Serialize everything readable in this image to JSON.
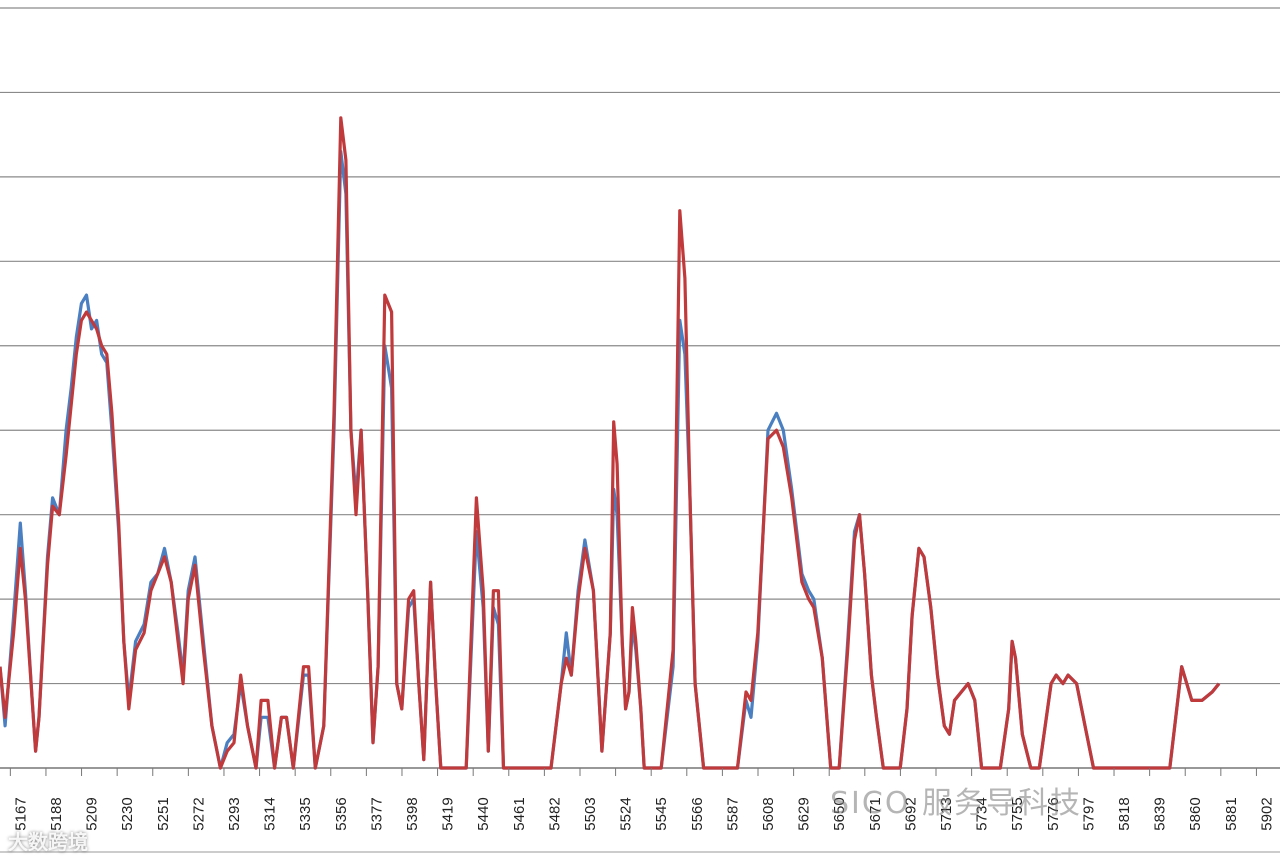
{
  "chart_data": {
    "type": "line",
    "title": "",
    "xlabel": "",
    "ylabel": "",
    "grid": true,
    "ylim": [
      0,
      9
    ],
    "x_ticks": [
      "5167",
      "5188",
      "5209",
      "5230",
      "5251",
      "5272",
      "5293",
      "5314",
      "5335",
      "5356",
      "5377",
      "5398",
      "5419",
      "5440",
      "5461",
      "5482",
      "5503",
      "5524",
      "5545",
      "5566",
      "5587",
      "5608",
      "5629",
      "5650",
      "5671",
      "5692",
      "5713",
      "5734",
      "5755",
      "5776",
      "5797",
      "5818",
      "5839",
      "5860",
      "5881",
      "5902"
    ],
    "xlim": [
      5155,
      5910
    ],
    "series": [
      {
        "name": "",
        "color": "#4a7fc1",
        "points": [
          [
            5155,
            1.2
          ],
          [
            5158,
            0.5
          ],
          [
            5163,
            1.8
          ],
          [
            5167,
            2.9
          ],
          [
            5170,
            2.1
          ],
          [
            5174,
            0.8
          ],
          [
            5176,
            0.2
          ],
          [
            5178,
            0.6
          ],
          [
            5183,
            2.5
          ],
          [
            5186,
            3.2
          ],
          [
            5190,
            3.0
          ],
          [
            5194,
            4.0
          ],
          [
            5197,
            4.5
          ],
          [
            5200,
            5.1
          ],
          [
            5203,
            5.5
          ],
          [
            5206,
            5.6
          ],
          [
            5209,
            5.2
          ],
          [
            5212,
            5.3
          ],
          [
            5215,
            4.9
          ],
          [
            5218,
            4.8
          ],
          [
            5221,
            4.0
          ],
          [
            5225,
            2.8
          ],
          [
            5228,
            1.5
          ],
          [
            5231,
            0.8
          ],
          [
            5235,
            1.5
          ],
          [
            5240,
            1.7
          ],
          [
            5244,
            2.2
          ],
          [
            5248,
            2.3
          ],
          [
            5252,
            2.6
          ],
          [
            5256,
            2.2
          ],
          [
            5260,
            1.6
          ],
          [
            5263,
            1.1
          ],
          [
            5266,
            2.1
          ],
          [
            5270,
            2.5
          ],
          [
            5275,
            1.5
          ],
          [
            5280,
            0.5
          ],
          [
            5285,
            0.0
          ],
          [
            5289,
            0.3
          ],
          [
            5293,
            0.4
          ],
          [
            5297,
            1.0
          ],
          [
            5301,
            0.5
          ],
          [
            5306,
            0.0
          ],
          [
            5309,
            0.6
          ],
          [
            5313,
            0.6
          ],
          [
            5317,
            0.0
          ],
          [
            5321,
            0.6
          ],
          [
            5324,
            0.6
          ],
          [
            5328,
            0.0
          ],
          [
            5334,
            1.1
          ],
          [
            5337,
            1.1
          ],
          [
            5341,
            0.0
          ],
          [
            5346,
            0.5
          ],
          [
            5352,
            4.0
          ],
          [
            5356,
            7.3
          ],
          [
            5359,
            6.8
          ],
          [
            5362,
            4.0
          ],
          [
            5365,
            3.2
          ],
          [
            5368,
            4.0
          ],
          [
            5372,
            2.0
          ],
          [
            5375,
            0.3
          ],
          [
            5378,
            1.2
          ],
          [
            5382,
            5.0
          ],
          [
            5386,
            4.5
          ],
          [
            5389,
            1.0
          ],
          [
            5392,
            0.7
          ],
          [
            5396,
            1.9
          ],
          [
            5399,
            2.0
          ],
          [
            5402,
            1.0
          ],
          [
            5405,
            0.1
          ],
          [
            5409,
            2.2
          ],
          [
            5412,
            1.0
          ],
          [
            5415,
            0.0
          ],
          [
            5425,
            0.0
          ],
          [
            5430,
            0.0
          ],
          [
            5436,
            2.8
          ],
          [
            5440,
            1.9
          ],
          [
            5443,
            0.2
          ],
          [
            5446,
            1.9
          ],
          [
            5449,
            1.7
          ],
          [
            5452,
            0.0
          ],
          [
            5480,
            0.0
          ],
          [
            5486,
            1.0
          ],
          [
            5489,
            1.6
          ],
          [
            5492,
            1.1
          ],
          [
            5496,
            2.1
          ],
          [
            5500,
            2.7
          ],
          [
            5505,
            2.1
          ],
          [
            5510,
            0.2
          ],
          [
            5515,
            1.6
          ],
          [
            5517,
            3.3
          ],
          [
            5519,
            3.0
          ],
          [
            5522,
            1.5
          ],
          [
            5524,
            0.7
          ],
          [
            5526,
            0.9
          ],
          [
            5528,
            1.7
          ],
          [
            5530,
            1.4
          ],
          [
            5533,
            0.7
          ],
          [
            5535,
            0.0
          ],
          [
            5545,
            0.0
          ],
          [
            5552,
            1.2
          ],
          [
            5556,
            5.3
          ],
          [
            5559,
            4.9
          ],
          [
            5562,
            3.2
          ],
          [
            5565,
            1.0
          ],
          [
            5570,
            0.0
          ],
          [
            5590,
            0.0
          ],
          [
            5595,
            0.8
          ],
          [
            5598,
            0.6
          ],
          [
            5602,
            1.5
          ],
          [
            5608,
            4.0
          ],
          [
            5613,
            4.2
          ],
          [
            5617,
            4.0
          ],
          [
            5622,
            3.3
          ],
          [
            5628,
            2.3
          ],
          [
            5632,
            2.1
          ],
          [
            5635,
            2.0
          ],
          [
            5640,
            1.3
          ],
          [
            5645,
            0.0
          ],
          [
            5650,
            0.0
          ],
          [
            5655,
            1.5
          ],
          [
            5659,
            2.8
          ],
          [
            5662,
            3.0
          ],
          [
            5665,
            2.3
          ],
          [
            5669,
            1.1
          ],
          [
            5672,
            0.6
          ],
          [
            5676,
            0.0
          ],
          [
            5686,
            0.0
          ],
          [
            5690,
            0.7
          ],
          [
            5693,
            1.8
          ],
          [
            5697,
            2.6
          ],
          [
            5700,
            2.5
          ],
          [
            5704,
            1.9
          ],
          [
            5708,
            1.1
          ],
          [
            5712,
            0.5
          ],
          [
            5715,
            0.4
          ],
          [
            5718,
            0.8
          ],
          [
            5722,
            0.9
          ],
          [
            5726,
            1.0
          ],
          [
            5730,
            0.8
          ],
          [
            5734,
            0.0
          ],
          [
            5745,
            0.0
          ],
          [
            5750,
            0.7
          ],
          [
            5752,
            1.5
          ],
          [
            5754,
            1.3
          ],
          [
            5758,
            0.4
          ],
          [
            5763,
            0.0
          ],
          [
            5768,
            0.0
          ],
          [
            5775,
            1.0
          ],
          [
            5778,
            1.1
          ],
          [
            5782,
            1.0
          ],
          [
            5785,
            1.1
          ],
          [
            5790,
            1.0
          ],
          [
            5795,
            0.5
          ],
          [
            5800,
            0.0
          ],
          [
            5845,
            0.0
          ],
          [
            5852,
            1.2
          ],
          [
            5858,
            0.8
          ],
          [
            5864,
            0.8
          ],
          [
            5870,
            0.9
          ],
          [
            5874,
            1.0
          ]
        ]
      },
      {
        "name": "",
        "color": "#c0393b",
        "points": [
          [
            5155,
            1.2
          ],
          [
            5158,
            0.6
          ],
          [
            5163,
            1.6
          ],
          [
            5167,
            2.6
          ],
          [
            5170,
            2.0
          ],
          [
            5174,
            0.8
          ],
          [
            5176,
            0.2
          ],
          [
            5178,
            0.6
          ],
          [
            5183,
            2.4
          ],
          [
            5186,
            3.1
          ],
          [
            5190,
            3.0
          ],
          [
            5194,
            3.7
          ],
          [
            5197,
            4.3
          ],
          [
            5200,
            4.9
          ],
          [
            5203,
            5.3
          ],
          [
            5206,
            5.4
          ],
          [
            5209,
            5.3
          ],
          [
            5212,
            5.2
          ],
          [
            5215,
            5.0
          ],
          [
            5218,
            4.9
          ],
          [
            5221,
            4.2
          ],
          [
            5225,
            2.9
          ],
          [
            5228,
            1.5
          ],
          [
            5231,
            0.7
          ],
          [
            5235,
            1.4
          ],
          [
            5240,
            1.6
          ],
          [
            5244,
            2.1
          ],
          [
            5248,
            2.3
          ],
          [
            5252,
            2.5
          ],
          [
            5256,
            2.2
          ],
          [
            5260,
            1.5
          ],
          [
            5263,
            1.0
          ],
          [
            5266,
            2.0
          ],
          [
            5270,
            2.4
          ],
          [
            5275,
            1.4
          ],
          [
            5280,
            0.5
          ],
          [
            5285,
            0.0
          ],
          [
            5289,
            0.2
          ],
          [
            5293,
            0.3
          ],
          [
            5297,
            1.1
          ],
          [
            5301,
            0.5
          ],
          [
            5306,
            0.0
          ],
          [
            5309,
            0.8
          ],
          [
            5313,
            0.8
          ],
          [
            5317,
            0.0
          ],
          [
            5321,
            0.6
          ],
          [
            5324,
            0.6
          ],
          [
            5328,
            0.0
          ],
          [
            5334,
            1.2
          ],
          [
            5337,
            1.2
          ],
          [
            5341,
            0.0
          ],
          [
            5346,
            0.5
          ],
          [
            5352,
            4.2
          ],
          [
            5356,
            7.7
          ],
          [
            5359,
            7.2
          ],
          [
            5362,
            4.0
          ],
          [
            5365,
            3.0
          ],
          [
            5368,
            4.0
          ],
          [
            5372,
            2.0
          ],
          [
            5375,
            0.3
          ],
          [
            5378,
            1.2
          ],
          [
            5382,
            5.6
          ],
          [
            5386,
            5.4
          ],
          [
            5389,
            1.0
          ],
          [
            5392,
            0.7
          ],
          [
            5396,
            2.0
          ],
          [
            5399,
            2.1
          ],
          [
            5402,
            1.0
          ],
          [
            5405,
            0.1
          ],
          [
            5409,
            2.2
          ],
          [
            5412,
            1.0
          ],
          [
            5415,
            0.0
          ],
          [
            5425,
            0.0
          ],
          [
            5430,
            0.0
          ],
          [
            5436,
            3.2
          ],
          [
            5440,
            2.1
          ],
          [
            5443,
            0.2
          ],
          [
            5446,
            2.1
          ],
          [
            5449,
            2.1
          ],
          [
            5452,
            0.0
          ],
          [
            5480,
            0.0
          ],
          [
            5486,
            1.0
          ],
          [
            5489,
            1.3
          ],
          [
            5492,
            1.1
          ],
          [
            5496,
            2.0
          ],
          [
            5500,
            2.6
          ],
          [
            5505,
            2.1
          ],
          [
            5510,
            0.2
          ],
          [
            5515,
            1.6
          ],
          [
            5517,
            4.1
          ],
          [
            5519,
            3.6
          ],
          [
            5522,
            1.5
          ],
          [
            5524,
            0.7
          ],
          [
            5526,
            0.9
          ],
          [
            5528,
            1.9
          ],
          [
            5530,
            1.5
          ],
          [
            5533,
            0.7
          ],
          [
            5535,
            0.0
          ],
          [
            5545,
            0.0
          ],
          [
            5552,
            1.4
          ],
          [
            5556,
            6.6
          ],
          [
            5559,
            5.8
          ],
          [
            5562,
            3.2
          ],
          [
            5565,
            1.0
          ],
          [
            5570,
            0.0
          ],
          [
            5590,
            0.0
          ],
          [
            5595,
            0.9
          ],
          [
            5598,
            0.8
          ],
          [
            5602,
            1.6
          ],
          [
            5608,
            3.9
          ],
          [
            5613,
            4.0
          ],
          [
            5617,
            3.8
          ],
          [
            5622,
            3.2
          ],
          [
            5628,
            2.2
          ],
          [
            5632,
            2.0
          ],
          [
            5635,
            1.9
          ],
          [
            5640,
            1.3
          ],
          [
            5645,
            0.0
          ],
          [
            5650,
            0.0
          ],
          [
            5655,
            1.4
          ],
          [
            5659,
            2.7
          ],
          [
            5662,
            3.0
          ],
          [
            5665,
            2.3
          ],
          [
            5669,
            1.1
          ],
          [
            5672,
            0.6
          ],
          [
            5676,
            0.0
          ],
          [
            5686,
            0.0
          ],
          [
            5690,
            0.7
          ],
          [
            5693,
            1.8
          ],
          [
            5697,
            2.6
          ],
          [
            5700,
            2.5
          ],
          [
            5704,
            1.9
          ],
          [
            5708,
            1.1
          ],
          [
            5712,
            0.5
          ],
          [
            5715,
            0.4
          ],
          [
            5718,
            0.8
          ],
          [
            5722,
            0.9
          ],
          [
            5726,
            1.0
          ],
          [
            5730,
            0.8
          ],
          [
            5734,
            0.0
          ],
          [
            5745,
            0.0
          ],
          [
            5750,
            0.7
          ],
          [
            5752,
            1.5
          ],
          [
            5754,
            1.3
          ],
          [
            5758,
            0.4
          ],
          [
            5763,
            0.0
          ],
          [
            5768,
            0.0
          ],
          [
            5775,
            1.0
          ],
          [
            5778,
            1.1
          ],
          [
            5782,
            1.0
          ],
          [
            5785,
            1.1
          ],
          [
            5790,
            1.0
          ],
          [
            5795,
            0.5
          ],
          [
            5800,
            0.0
          ],
          [
            5845,
            0.0
          ],
          [
            5852,
            1.2
          ],
          [
            5858,
            0.8
          ],
          [
            5864,
            0.8
          ],
          [
            5870,
            0.9
          ],
          [
            5874,
            1.0
          ]
        ]
      }
    ]
  },
  "watermarks": {
    "bottom_left": "大数跨境",
    "center": "SICO 服务导科技"
  }
}
